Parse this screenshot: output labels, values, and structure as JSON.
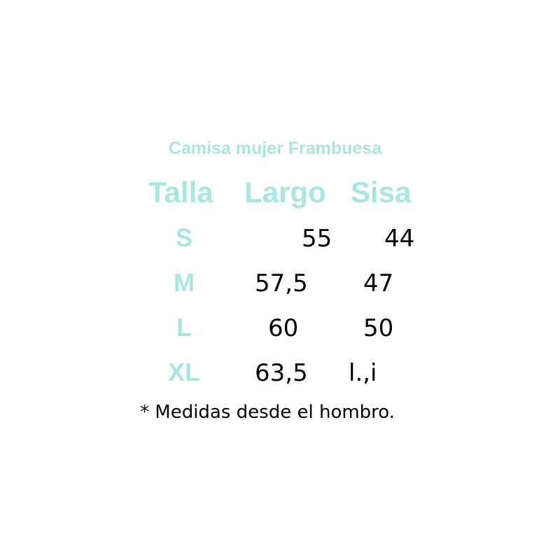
{
  "title": "Camisa mujer Frambuesa",
  "headers": [
    "Talla",
    "Largo",
    "Sisa"
  ],
  "rows": [
    {
      "talla": "S",
      "largo": "55",
      "sisa": "44"
    },
    {
      "talla": "M",
      "largo": "57,5",
      "sisa": "47"
    },
    {
      "talla": "L",
      "largo": "60",
      "sisa": "50"
    },
    {
      "talla": "XL",
      "largo": "63,5",
      "sisa": "l.,i"
    }
  ],
  "footnote": "* Medidas desde el hombro.",
  "colors": {
    "accent": "#a8e6e0",
    "text": "#000000",
    "background": "#ffffff"
  }
}
